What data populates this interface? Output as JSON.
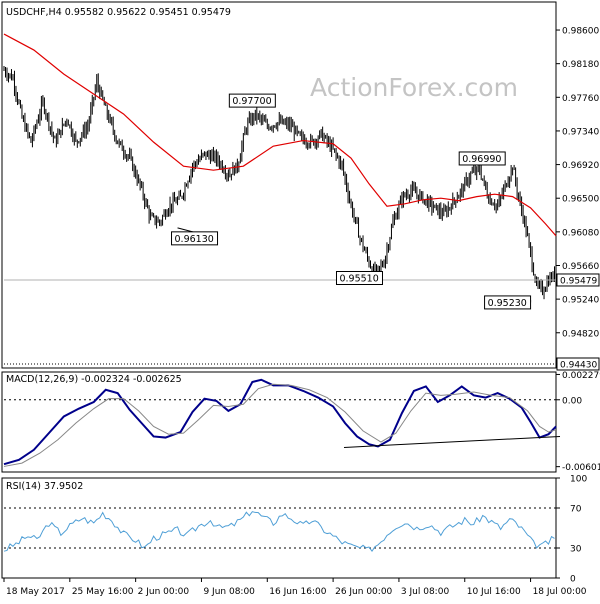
{
  "chart_data": [
    {
      "type": "ohlc",
      "panel": "price",
      "header": {
        "symbol": "USDCHF,H4",
        "open": "0.95582",
        "high": "0.95622",
        "low": "0.95451",
        "close": "0.95479"
      },
      "watermark": "ActionForex.com",
      "y_axis": {
        "ylim": [
          0.9438,
          0.9895
        ],
        "ticks": [
          "0.98600",
          "0.98180",
          "0.97760",
          "0.97340",
          "0.96920",
          "0.96500",
          "0.96080",
          "0.95660",
          "0.95240",
          "0.94820"
        ]
      },
      "x_axis": {
        "labels": [
          "18 May 2017",
          "25 May 16:00",
          "2 Jun 00:00",
          "9 Jun 08:00",
          "16 Jun 16:00",
          "26 Jun 00:00",
          "3 Jul 08:00",
          "10 Jul 16:00",
          "18 Jul 00:00"
        ],
        "label_bar_index": [
          0,
          44,
          88,
          132,
          176,
          220,
          264,
          308,
          352
        ]
      },
      "bar_count": 370,
      "price_path": [
        [
          0,
          0.981
        ],
        [
          6,
          0.98
        ],
        [
          12,
          0.975
        ],
        [
          18,
          0.972
        ],
        [
          26,
          0.977
        ],
        [
          34,
          0.972
        ],
        [
          42,
          0.975
        ],
        [
          48,
          0.972
        ],
        [
          56,
          0.974
        ],
        [
          62,
          0.9795
        ],
        [
          68,
          0.976
        ],
        [
          76,
          0.972
        ],
        [
          84,
          0.97
        ],
        [
          92,
          0.966
        ],
        [
          98,
          0.9625
        ],
        [
          104,
          0.962
        ],
        [
          110,
          0.964
        ],
        [
          118,
          0.965
        ],
        [
          126,
          0.969
        ],
        [
          134,
          0.9705
        ],
        [
          142,
          0.97
        ],
        [
          150,
          0.968
        ],
        [
          156,
          0.969
        ],
        [
          162,
          0.974
        ],
        [
          168,
          0.9755
        ],
        [
          176,
          0.974
        ],
        [
          184,
          0.9745
        ],
        [
          192,
          0.974
        ],
        [
          198,
          0.9725
        ],
        [
          206,
          0.972
        ],
        [
          212,
          0.973
        ],
        [
          220,
          0.971
        ],
        [
          226,
          0.969
        ],
        [
          232,
          0.964
        ],
        [
          238,
          0.96
        ],
        [
          244,
          0.957
        ],
        [
          248,
          0.9555
        ],
        [
          254,
          0.957
        ],
        [
          260,
          0.962
        ],
        [
          266,
          0.965
        ],
        [
          272,
          0.966
        ],
        [
          280,
          0.965
        ],
        [
          286,
          0.964
        ],
        [
          294,
          0.963
        ],
        [
          300,
          0.9645
        ],
        [
          306,
          0.966
        ],
        [
          312,
          0.968
        ],
        [
          318,
          0.9685
        ],
        [
          324,
          0.965
        ],
        [
          330,
          0.964
        ],
        [
          336,
          0.967
        ],
        [
          340,
          0.969
        ],
        [
          344,
          0.965
        ],
        [
          348,
          0.962
        ],
        [
          352,
          0.958
        ],
        [
          356,
          0.954
        ],
        [
          360,
          0.9535
        ],
        [
          364,
          0.9548
        ],
        [
          369,
          0.9555
        ]
      ],
      "moving_average_path": [
        [
          0,
          0.9855
        ],
        [
          20,
          0.9835
        ],
        [
          40,
          0.9805
        ],
        [
          60,
          0.978
        ],
        [
          80,
          0.9755
        ],
        [
          100,
          0.972
        ],
        [
          120,
          0.969
        ],
        [
          140,
          0.9685
        ],
        [
          160,
          0.969
        ],
        [
          180,
          0.9715
        ],
        [
          200,
          0.9722
        ],
        [
          220,
          0.9718
        ],
        [
          232,
          0.97
        ],
        [
          244,
          0.9668
        ],
        [
          256,
          0.964
        ],
        [
          268,
          0.9643
        ],
        [
          280,
          0.9648
        ],
        [
          292,
          0.965
        ],
        [
          304,
          0.9647
        ],
        [
          316,
          0.9652
        ],
        [
          328,
          0.9655
        ],
        [
          340,
          0.9652
        ],
        [
          352,
          0.9638
        ],
        [
          362,
          0.9618
        ],
        [
          369,
          0.9603
        ]
      ],
      "annotations": [
        {
          "text": "0.97700",
          "bar": 164,
          "price": 0.977
        },
        {
          "text": "0.96130",
          "bar": 116,
          "price": 0.9613
        },
        {
          "text": "0.95510",
          "bar": 249,
          "price": 0.9551
        },
        {
          "text": "0.96990",
          "bar": 321,
          "price": 0.9699
        },
        {
          "text": "0.95230",
          "bar": 352,
          "price": 0.9523
        }
      ],
      "horizontal_lines": [
        {
          "price": 0.95479,
          "label": "0.95479",
          "kind": "current"
        },
        {
          "price": 0.9443,
          "label": "0.94430",
          "kind": "axis-box"
        }
      ]
    },
    {
      "type": "line",
      "panel": "macd",
      "title": "MACD(12,26,9) -0.002324 -0.002625",
      "ylim": [
        -0.0065,
        0.0025
      ],
      "ticks": [
        "0.002279",
        "0.00",
        "-0.006019"
      ],
      "zero_line": 0.0,
      "series": [
        {
          "name": "MACD",
          "color": "#00008b",
          "points": [
            [
              0,
              -0.0058
            ],
            [
              10,
              -0.0054
            ],
            [
              20,
              -0.0045
            ],
            [
              30,
              -0.003
            ],
            [
              40,
              -0.0015
            ],
            [
              50,
              -0.0008
            ],
            [
              60,
              -0.0002
            ],
            [
              68,
              0.0009
            ],
            [
              76,
              0.0006
            ],
            [
              84,
              -0.0009
            ],
            [
              92,
              -0.0021
            ],
            [
              100,
              -0.0033
            ],
            [
              108,
              -0.0034
            ],
            [
              118,
              -0.0029
            ],
            [
              126,
              -0.0011
            ],
            [
              134,
              0.0001
            ],
            [
              142,
              -0.0001
            ],
            [
              150,
              -0.001
            ],
            [
              158,
              -0.0004
            ],
            [
              166,
              0.0016
            ],
            [
              172,
              0.0018
            ],
            [
              180,
              0.0013
            ],
            [
              190,
              0.0013
            ],
            [
              200,
              0.0008
            ],
            [
              210,
              0.0002
            ],
            [
              220,
              -0.0006
            ],
            [
              228,
              -0.0021
            ],
            [
              236,
              -0.0033
            ],
            [
              244,
              -0.004
            ],
            [
              250,
              -0.0042
            ],
            [
              258,
              -0.0036
            ],
            [
              266,
              -0.0012
            ],
            [
              274,
              0.0008
            ],
            [
              282,
              0.0012
            ],
            [
              290,
              -0.0002
            ],
            [
              298,
              0.0004
            ],
            [
              306,
              0.0012
            ],
            [
              314,
              0.0004
            ],
            [
              322,
              0.0002
            ],
            [
              330,
              0.0006
            ],
            [
              338,
              0.0001
            ],
            [
              346,
              -0.0007
            ],
            [
              352,
              -0.002
            ],
            [
              358,
              -0.0034
            ],
            [
              364,
              -0.0031
            ],
            [
              369,
              -0.0024
            ]
          ]
        },
        {
          "name": "Signal",
          "color": "#888888",
          "points": [
            [
              0,
              -0.006
            ],
            [
              12,
              -0.0057
            ],
            [
              24,
              -0.0048
            ],
            [
              36,
              -0.0036
            ],
            [
              48,
              -0.0021
            ],
            [
              60,
              -0.0008
            ],
            [
              70,
              0.0001
            ],
            [
              80,
              0.0001
            ],
            [
              90,
              -0.001
            ],
            [
              100,
              -0.0024
            ],
            [
              110,
              -0.0031
            ],
            [
              120,
              -0.003
            ],
            [
              130,
              -0.0018
            ],
            [
              140,
              -0.0005
            ],
            [
              150,
              -0.0006
            ],
            [
              160,
              -0.0004
            ],
            [
              170,
              0.001
            ],
            [
              180,
              0.0014
            ],
            [
              192,
              0.0013
            ],
            [
              204,
              0.0009
            ],
            [
              216,
              0.0002
            ],
            [
              228,
              -0.0011
            ],
            [
              240,
              -0.0028
            ],
            [
              252,
              -0.0038
            ],
            [
              262,
              -0.003
            ],
            [
              272,
              -0.001
            ],
            [
              282,
              0.0006
            ],
            [
              292,
              0.0004
            ],
            [
              302,
              0.0005
            ],
            [
              314,
              0.0007
            ],
            [
              326,
              0.0004
            ],
            [
              338,
              0.0002
            ],
            [
              350,
              -0.001
            ],
            [
              358,
              -0.0024
            ],
            [
              364,
              -0.0029
            ],
            [
              369,
              -0.0027
            ]
          ]
        }
      ],
      "trendline": {
        "from": [
          244,
          -0.0042
        ],
        "to": [
          369,
          -0.0033
        ]
      }
    },
    {
      "type": "line",
      "panel": "rsi",
      "title": "RSI(14) 37.9502",
      "ylim": [
        0,
        100
      ],
      "ticks": [
        "100",
        "70",
        "30",
        "0"
      ],
      "reference_lines": [
        70,
        30
      ],
      "series": [
        {
          "name": "RSI",
          "color": "#4f9fd6",
          "points": [
            [
              0,
              28
            ],
            [
              8,
              34
            ],
            [
              16,
              42
            ],
            [
              22,
              38
            ],
            [
              30,
              55
            ],
            [
              38,
              45
            ],
            [
              44,
              52
            ],
            [
              52,
              60
            ],
            [
              60,
              55
            ],
            [
              66,
              65
            ],
            [
              72,
              58
            ],
            [
              80,
              44
            ],
            [
              88,
              38
            ],
            [
              94,
              30
            ],
            [
              100,
              40
            ],
            [
              108,
              44
            ],
            [
              116,
              48
            ],
            [
              122,
              42
            ],
            [
              130,
              52
            ],
            [
              138,
              58
            ],
            [
              144,
              50
            ],
            [
              152,
              52
            ],
            [
              160,
              60
            ],
            [
              166,
              68
            ],
            [
              172,
              62
            ],
            [
              180,
              55
            ],
            [
              186,
              64
            ],
            [
              192,
              60
            ],
            [
              200,
              52
            ],
            [
              206,
              58
            ],
            [
              212,
              50
            ],
            [
              220,
              42
            ],
            [
              226,
              36
            ],
            [
              232,
              32
            ],
            [
              238,
              30
            ],
            [
              244,
              28
            ],
            [
              250,
              34
            ],
            [
              256,
              44
            ],
            [
              262,
              52
            ],
            [
              268,
              56
            ],
            [
              276,
              50
            ],
            [
              284,
              54
            ],
            [
              292,
              46
            ],
            [
              300,
              52
            ],
            [
              308,
              58
            ],
            [
              314,
              54
            ],
            [
              320,
              62
            ],
            [
              326,
              56
            ],
            [
              332,
              50
            ],
            [
              338,
              58
            ],
            [
              342,
              55
            ],
            [
              348,
              46
            ],
            [
              354,
              34
            ],
            [
              360,
              32
            ],
            [
              366,
              38
            ],
            [
              369,
              38
            ]
          ]
        }
      ]
    }
  ]
}
